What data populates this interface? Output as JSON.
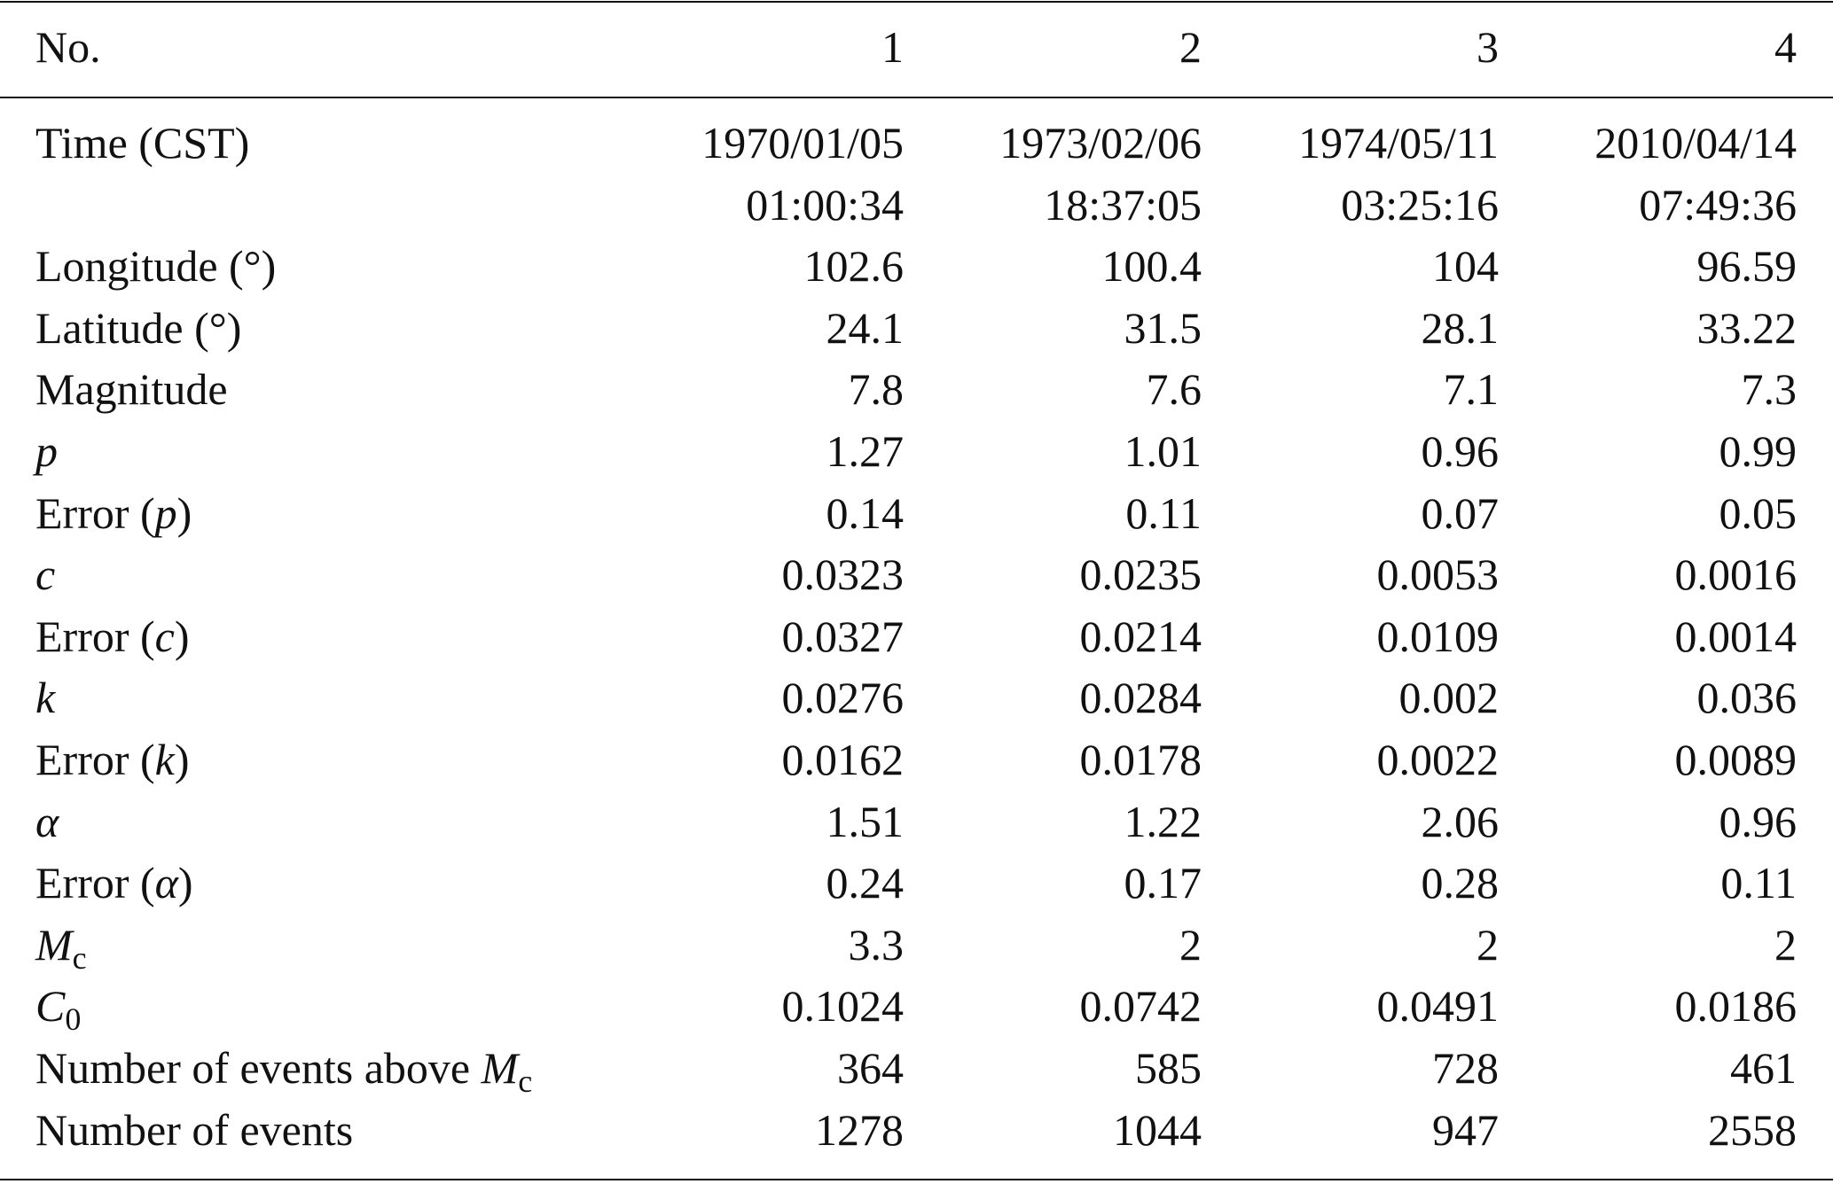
{
  "table": {
    "header": [
      "No.",
      "1",
      "2",
      "3",
      "4"
    ],
    "rows": [
      {
        "label": [
          {
            "text": "Time (CST)"
          }
        ],
        "cells": [
          [
            "1970/01/05",
            "01:00:34"
          ],
          [
            "1973/02/06",
            "18:37:05"
          ],
          [
            "1974/05/11",
            "03:25:16"
          ],
          [
            "2010/04/14",
            "07:49:36"
          ]
        ]
      },
      {
        "label": [
          {
            "text": "Longitude (°)"
          }
        ],
        "cells": [
          "102.6",
          "100.4",
          "104",
          "96.59"
        ]
      },
      {
        "label": [
          {
            "text": "Latitude (°)"
          }
        ],
        "cells": [
          "24.1",
          "31.5",
          "28.1",
          "33.22"
        ]
      },
      {
        "label": [
          {
            "text": "Magnitude"
          }
        ],
        "cells": [
          "7.8",
          "7.6",
          "7.1",
          "7.3"
        ]
      },
      {
        "label": [
          {
            "text": "p",
            "italic": true
          }
        ],
        "cells": [
          "1.27",
          "1.01",
          "0.96",
          "0.99"
        ]
      },
      {
        "label": [
          {
            "text": "Error ("
          },
          {
            "text": "p",
            "italic": true
          },
          {
            "text": ")"
          }
        ],
        "cells": [
          "0.14",
          "0.11",
          "0.07",
          "0.05"
        ]
      },
      {
        "label": [
          {
            "text": "c",
            "italic": true
          }
        ],
        "cells": [
          "0.0323",
          "0.0235",
          "0.0053",
          "0.0016"
        ]
      },
      {
        "label": [
          {
            "text": "Error ("
          },
          {
            "text": "c",
            "italic": true
          },
          {
            "text": ")"
          }
        ],
        "cells": [
          "0.0327",
          "0.0214",
          "0.0109",
          "0.0014"
        ]
      },
      {
        "label": [
          {
            "text": "k",
            "italic": true
          }
        ],
        "cells": [
          "0.0276",
          "0.0284",
          "0.002",
          "0.036"
        ]
      },
      {
        "label": [
          {
            "text": "Error ("
          },
          {
            "text": "k",
            "italic": true
          },
          {
            "text": ")"
          }
        ],
        "cells": [
          "0.0162",
          "0.0178",
          "0.0022",
          "0.0089"
        ]
      },
      {
        "label": [
          {
            "text": "α",
            "italic": true
          }
        ],
        "cells": [
          "1.51",
          "1.22",
          "2.06",
          "0.96"
        ]
      },
      {
        "label": [
          {
            "text": "Error ("
          },
          {
            "text": "α",
            "italic": true
          },
          {
            "text": ")"
          }
        ],
        "cells": [
          "0.24",
          "0.17",
          "0.28",
          "0.11"
        ]
      },
      {
        "label": [
          {
            "text": "M",
            "italic": true
          },
          {
            "text": "c",
            "sub": true
          }
        ],
        "cells": [
          "3.3",
          "2",
          "2",
          "2"
        ]
      },
      {
        "label": [
          {
            "text": "C",
            "italic": true
          },
          {
            "text": "0",
            "sub": true
          }
        ],
        "cells": [
          "0.1024",
          "0.0742",
          "0.0491",
          "0.0186"
        ]
      },
      {
        "label": [
          {
            "text": "Number of events above "
          },
          {
            "text": "M",
            "italic": true
          },
          {
            "text": "c",
            "sub": true
          }
        ],
        "cells": [
          "364",
          "585",
          "728",
          "461"
        ]
      },
      {
        "label": [
          {
            "text": "Number of events"
          }
        ],
        "cells": [
          "1278",
          "1044",
          "947",
          "2558"
        ]
      }
    ]
  }
}
